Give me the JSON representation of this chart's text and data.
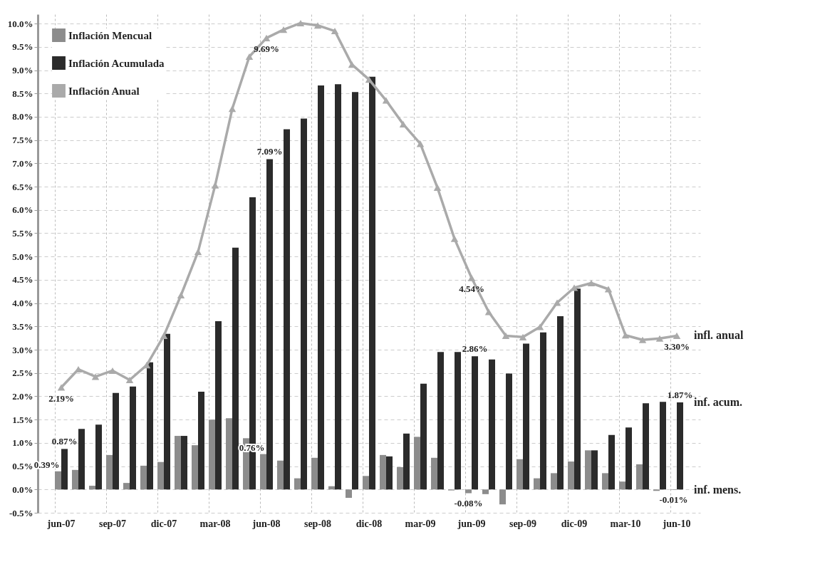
{
  "chart_data": {
    "type": "bar",
    "categories": [
      "jun-07",
      null,
      null,
      "sep-07",
      null,
      null,
      "dic-07",
      null,
      null,
      "mar-08",
      null,
      null,
      "jun-08",
      null,
      null,
      "sep-08",
      null,
      null,
      "dic-08",
      null,
      null,
      "mar-09",
      null,
      null,
      "jun-09",
      null,
      null,
      "sep-09",
      null,
      null,
      "dic-09",
      null,
      null,
      "mar-10",
      null,
      null,
      "jun-10"
    ],
    "series": [
      {
        "name": "Inflación Mencual",
        "type": "bar",
        "color": "#8c8c8c",
        "values": [
          0.39,
          0.42,
          0.08,
          0.74,
          0.14,
          0.51,
          0.59,
          1.15,
          0.95,
          1.5,
          1.53,
          1.1,
          0.76,
          0.62,
          0.24,
          0.68,
          0.07,
          -0.18,
          0.29,
          0.74,
          0.48,
          1.13,
          0.68,
          -0.02,
          -0.08,
          -0.1,
          -0.32,
          0.65,
          0.24,
          0.35,
          0.6,
          0.84,
          0.35,
          0.17,
          0.54,
          -0.03,
          -0.01
        ],
        "value_labels": [
          "0.39%",
          null,
          null,
          null,
          null,
          null,
          null,
          null,
          null,
          null,
          null,
          null,
          "0.76%",
          null,
          null,
          null,
          null,
          null,
          null,
          null,
          null,
          null,
          null,
          null,
          "-0.08%",
          null,
          null,
          null,
          null,
          null,
          null,
          null,
          null,
          null,
          null,
          null,
          "-0.01%"
        ]
      },
      {
        "name": "Inflación Acumulada",
        "type": "bar",
        "color": "#2b2b2b",
        "values": [
          0.87,
          1.3,
          1.39,
          2.07,
          2.21,
          2.73,
          3.34,
          1.15,
          2.1,
          3.61,
          5.19,
          6.27,
          7.09,
          7.73,
          7.96,
          8.67,
          8.7,
          8.53,
          8.86,
          0.71,
          1.2,
          2.27,
          2.95,
          2.95,
          2.86,
          2.79,
          2.49,
          3.13,
          3.37,
          3.72,
          4.31,
          0.84,
          1.17,
          1.33,
          1.85,
          1.88,
          1.87
        ],
        "value_labels": [
          "0.87%",
          null,
          null,
          null,
          null,
          null,
          null,
          null,
          null,
          null,
          null,
          null,
          "7.09%",
          null,
          null,
          null,
          null,
          null,
          null,
          null,
          null,
          null,
          null,
          null,
          "2.86%",
          null,
          null,
          null,
          null,
          null,
          null,
          null,
          null,
          null,
          null,
          null,
          "1.87%"
        ]
      },
      {
        "name": "Inflación Anual",
        "type": "line",
        "color": "#aaaaaa",
        "marker": "triangle",
        "values": [
          2.19,
          2.58,
          2.42,
          2.55,
          2.35,
          2.67,
          3.3,
          4.17,
          5.1,
          6.53,
          8.17,
          9.29,
          9.69,
          9.87,
          10.01,
          9.96,
          9.84,
          9.12,
          8.8,
          8.35,
          7.84,
          7.42,
          6.48,
          5.38,
          4.54,
          3.81,
          3.3,
          3.27,
          3.49,
          4.01,
          4.33,
          4.43,
          4.3,
          3.31,
          3.21,
          3.24,
          3.3
        ],
        "value_labels": [
          "2.19%",
          null,
          null,
          null,
          null,
          null,
          null,
          null,
          null,
          null,
          null,
          null,
          "9.69%",
          null,
          null,
          null,
          null,
          null,
          null,
          null,
          null,
          null,
          null,
          null,
          "4.54%",
          null,
          null,
          null,
          null,
          null,
          null,
          null,
          null,
          null,
          null,
          null,
          "3.30%"
        ]
      }
    ],
    "ylim": [
      -0.5,
      10.2
    ],
    "yticks": [
      {
        "value": -0.5,
        "label": "-0.5%"
      },
      {
        "value": 0,
        "label": "0.0%"
      },
      {
        "value": 0.5,
        "label": "0.5%"
      },
      {
        "value": 1,
        "label": "1.0%"
      },
      {
        "value": 1.5,
        "label": "1.5%"
      },
      {
        "value": 2,
        "label": "2.0%"
      },
      {
        "value": 2.5,
        "label": "2.5%"
      },
      {
        "value": 3,
        "label": "3.0%"
      },
      {
        "value": 3.5,
        "label": "3.5%"
      },
      {
        "value": 4,
        "label": "4.0%"
      },
      {
        "value": 4.5,
        "label": "4.5%"
      },
      {
        "value": 5,
        "label": "5.0%"
      },
      {
        "value": 5.5,
        "label": "5.5%"
      },
      {
        "value": 6,
        "label": "6.0%"
      },
      {
        "value": 6.5,
        "label": "6.5%"
      },
      {
        "value": 7,
        "label": "7.0%"
      },
      {
        "value": 7.5,
        "label": "7.5%"
      },
      {
        "value": 8,
        "label": "8.0%"
      },
      {
        "value": 8.5,
        "label": "8.5%"
      },
      {
        "value": 9,
        "label": "9.0%"
      },
      {
        "value": 9.5,
        "label": "9.5%"
      },
      {
        "value": 10,
        "label": "10.0%"
      }
    ],
    "annotations": [
      {
        "text": "infl. anual",
        "x": "jun-10",
        "y": 3.3
      },
      {
        "text": "inf. acum.",
        "x": "jun-10",
        "y": 1.87
      },
      {
        "text": "inf. mens.",
        "x": "jun-10",
        "y": -0.01
      }
    ],
    "grid": true,
    "legend": "top left"
  }
}
